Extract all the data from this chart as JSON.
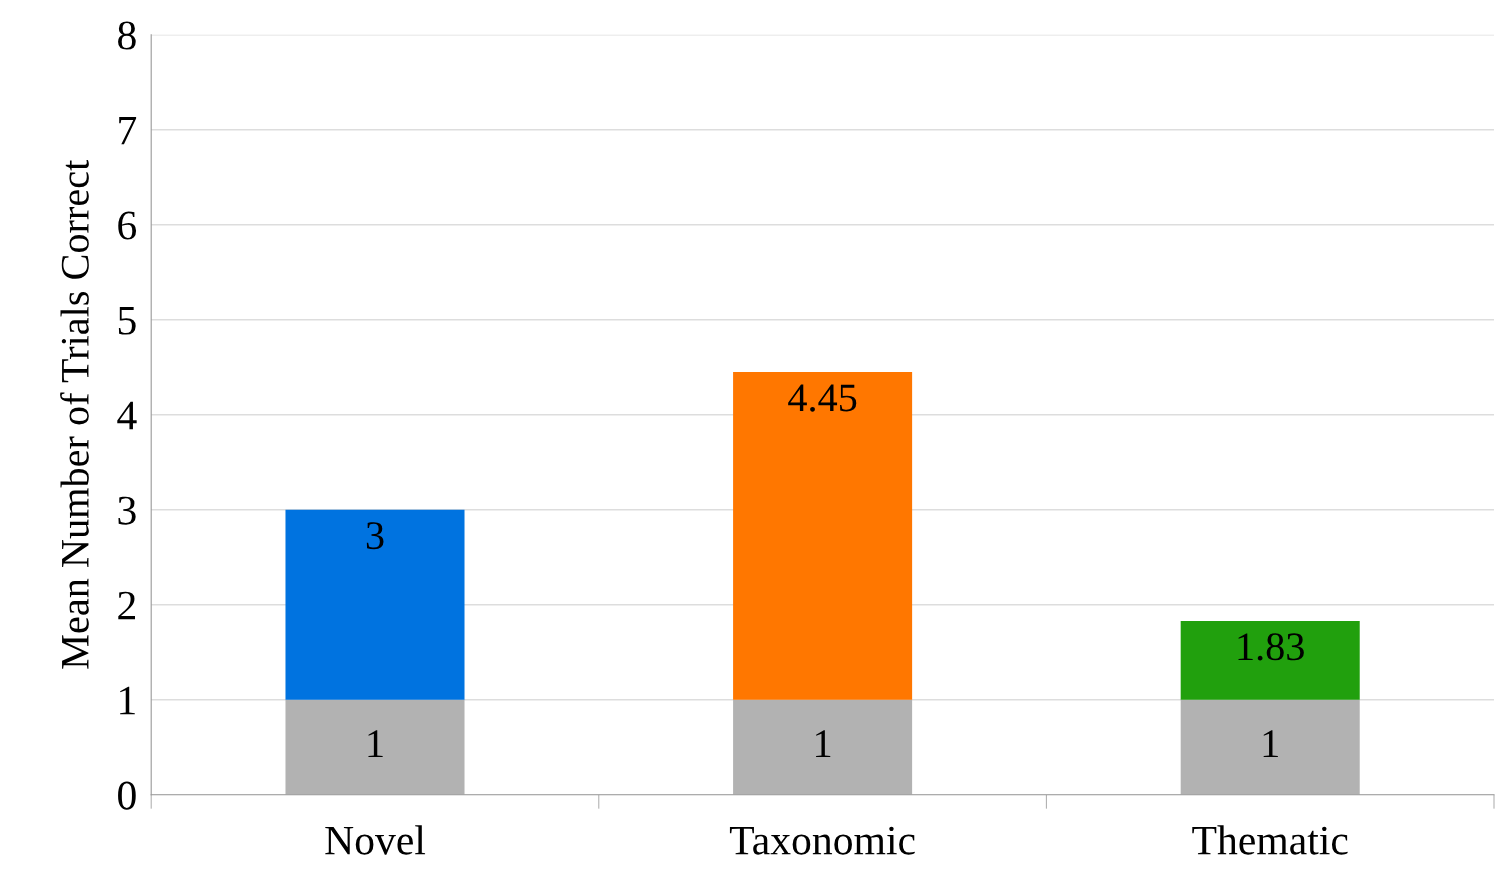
{
  "chart_data": {
    "type": "bar",
    "ylabel": "Mean Number of Trials Correct",
    "categories": [
      "Novel",
      "Taxonomic",
      "Thematic"
    ],
    "stacked": true,
    "series": [
      {
        "color": "#b2b2b2",
        "values": [
          1,
          1,
          1
        ],
        "value_labels": [
          "1",
          "1",
          "1"
        ]
      },
      {
        "colors": [
          "#0073e0",
          "#ff7700",
          "#21a00d"
        ],
        "values": [
          2,
          3.45,
          0.83
        ]
      }
    ],
    "totals": [
      "3",
      "4.45",
      "1.83"
    ],
    "ylim": [
      0,
      8
    ],
    "yticks": [
      0,
      1,
      2,
      3,
      4,
      5,
      6,
      7,
      8
    ],
    "grid": "y",
    "legend": false
  }
}
